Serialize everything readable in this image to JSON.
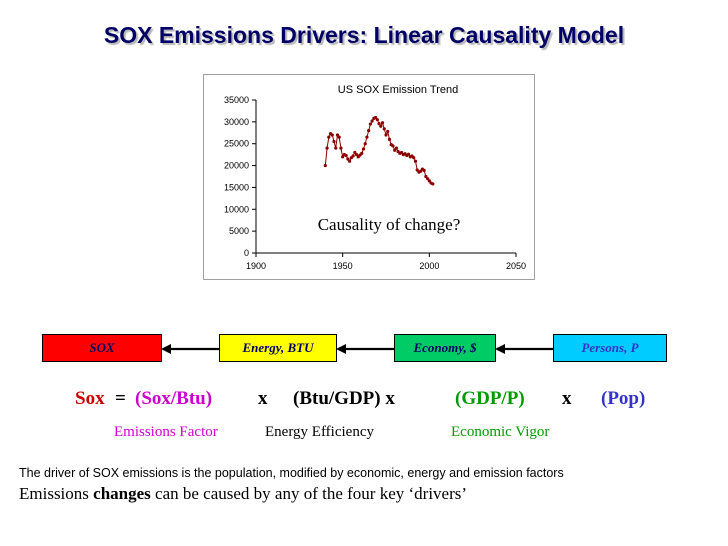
{
  "title": "SOX Emissions Drivers: Linear Causality Model",
  "chart_data": {
    "type": "line",
    "title": "US SOX Emission Trend",
    "annotation": "Causality of change?",
    "xlim": [
      1900,
      2050
    ],
    "ylim": [
      0,
      35000
    ],
    "x_ticks": [
      1900,
      1950,
      2000,
      2050
    ],
    "y_ticks": [
      0,
      5000,
      10000,
      15000,
      20000,
      25000,
      30000,
      35000
    ],
    "grid": false,
    "color": "#8b0000",
    "x": [
      1940,
      1941,
      1942,
      1943,
      1944,
      1945,
      1946,
      1947,
      1948,
      1949,
      1950,
      1951,
      1952,
      1953,
      1954,
      1955,
      1956,
      1957,
      1958,
      1959,
      1960,
      1961,
      1962,
      1963,
      1964,
      1965,
      1966,
      1967,
      1968,
      1969,
      1970,
      1971,
      1972,
      1973,
      1974,
      1975,
      1976,
      1977,
      1978,
      1979,
      1980,
      1981,
      1982,
      1983,
      1984,
      1985,
      1986,
      1987,
      1988,
      1989,
      1990,
      1991,
      1992,
      1993,
      1994,
      1995,
      1996,
      1997,
      1998,
      1999,
      2000,
      2001,
      2002
    ],
    "values": [
      20000,
      24000,
      26500,
      27300,
      27000,
      25500,
      24000,
      27000,
      26500,
      24000,
      22000,
      22500,
      22300,
      21500,
      21000,
      21800,
      22200,
      23000,
      22500,
      22000,
      22400,
      22800,
      23800,
      25000,
      26500,
      28000,
      29500,
      30200,
      30800,
      31000,
      30500,
      29600,
      29000,
      29800,
      28400,
      27000,
      27800,
      26000,
      24800,
      24500,
      23500,
      24000,
      23200,
      22800,
      23000,
      22500,
      22700,
      22300,
      22600,
      22000,
      22200,
      21800,
      21000,
      19000,
      18500,
      18700,
      19200,
      18900,
      17500,
      17000,
      16500,
      16000,
      15800
    ]
  },
  "nodes": [
    {
      "label": "SOX",
      "bg": "#ff0000",
      "fg": "#000066"
    },
    {
      "label": "Energy, BTU",
      "bg": "#ffff00",
      "fg": "#000066"
    },
    {
      "label": "Economy, $",
      "bg": "#00cc66",
      "fg": "#000066"
    },
    {
      "label": "Persons, P",
      "bg": "#00ccff",
      "fg": "#3333cc"
    }
  ],
  "equation": {
    "sox": "Sox",
    "equals": "=",
    "factor1": "(Sox/Btu)",
    "times1": "x",
    "factor2": "(Btu/GDP) x",
    "factor3": "(GDP/P)",
    "times3": "x",
    "factor4": "(Pop)"
  },
  "labels": {
    "emissions_factor": "Emissions Factor",
    "energy_efficiency": "Energy Efficiency",
    "economic_vigor": "Economic Vigor"
  },
  "colors": {
    "sox": "#cc0000",
    "emissions": "#cc00cc",
    "economic": "#009900",
    "population": "#3333cc",
    "title": "#000066"
  },
  "footer": {
    "line1": "The driver of SOX emissions is the population, modified by economic, energy and emission factors",
    "line2_pre": "Emissions ",
    "line2_bold": "changes",
    "line2_post": " can be caused by any of the four key ‘drivers’"
  }
}
